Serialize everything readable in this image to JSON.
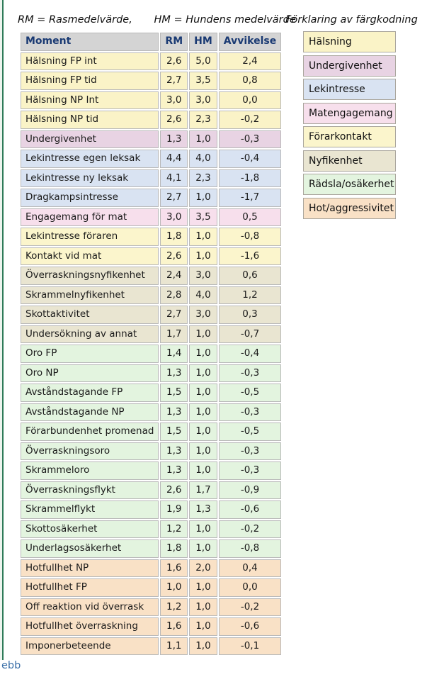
{
  "header": {
    "rm_definition": "RM = Rasmedelvärde,",
    "hm_definition": "HM = Hundens medelvärde"
  },
  "legend": {
    "title": "Förklaring av färgkodning",
    "items": [
      {
        "key": "halsning",
        "label": "Hälsning",
        "color": "#faf3c7"
      },
      {
        "key": "undergivenhet",
        "label": "Undergivenhet",
        "color": "#e8d3e3"
      },
      {
        "key": "lekintresse",
        "label": "Lekintresse",
        "color": "#d9e3f2"
      },
      {
        "key": "matengagemang",
        "label": "Matengagemang",
        "color": "#f7dfec"
      },
      {
        "key": "forarkontakt",
        "label": "Förarkontakt",
        "color": "#fbf5cc"
      },
      {
        "key": "nyfikenhet",
        "label": "Nyfikenhet",
        "color": "#e9e5d1"
      },
      {
        "key": "radsla",
        "label": "Rädsla/osäkerhet",
        "color": "#e3f4df"
      },
      {
        "key": "hot",
        "label": "Hot/aggressivitet",
        "color": "#f9e1c6"
      }
    ]
  },
  "table": {
    "columns": [
      "Moment",
      "RM",
      "HM",
      "Avvikelse"
    ],
    "header_bg": "#d4d4d4",
    "header_text_color": "#1a3a73",
    "rows": [
      {
        "moment": "Hälsning FP int",
        "rm": "2,6",
        "hm": "5,0",
        "avvikelse": "2,4",
        "category": "halsning"
      },
      {
        "moment": "Hälsning FP tid",
        "rm": "2,7",
        "hm": "3,5",
        "avvikelse": "0,8",
        "category": "halsning"
      },
      {
        "moment": "Hälsning NP Int",
        "rm": "3,0",
        "hm": "3,0",
        "avvikelse": "0,0",
        "category": "halsning"
      },
      {
        "moment": "Hälsning NP tid",
        "rm": "2,6",
        "hm": "2,3",
        "avvikelse": "-0,2",
        "category": "halsning"
      },
      {
        "moment": "Undergivenhet",
        "rm": "1,3",
        "hm": "1,0",
        "avvikelse": "-0,3",
        "category": "undergivenhet"
      },
      {
        "moment": "Lekintresse egen leksak",
        "rm": "4,4",
        "hm": "4,0",
        "avvikelse": "-0,4",
        "category": "lekintresse"
      },
      {
        "moment": "Lekintresse ny leksak",
        "rm": "4,1",
        "hm": "2,3",
        "avvikelse": "-1,8",
        "category": "lekintresse"
      },
      {
        "moment": "Dragkampsintresse",
        "rm": "2,7",
        "hm": "1,0",
        "avvikelse": "-1,7",
        "category": "lekintresse"
      },
      {
        "moment": "Engagemang för mat",
        "rm": "3,0",
        "hm": "3,5",
        "avvikelse": "0,5",
        "category": "matengagemang"
      },
      {
        "moment": "Lekintresse föraren",
        "rm": "1,8",
        "hm": "1,0",
        "avvikelse": "-0,8",
        "category": "forarkontakt"
      },
      {
        "moment": "Kontakt vid mat",
        "rm": "2,6",
        "hm": "1,0",
        "avvikelse": "-1,6",
        "category": "forarkontakt"
      },
      {
        "moment": "Överraskningsnyfikenhet",
        "rm": "2,4",
        "hm": "3,0",
        "avvikelse": "0,6",
        "category": "nyfikenhet"
      },
      {
        "moment": "Skrammelnyfikenhet",
        "rm": "2,8",
        "hm": "4,0",
        "avvikelse": "1,2",
        "category": "nyfikenhet"
      },
      {
        "moment": "Skottaktivitet",
        "rm": "2,7",
        "hm": "3,0",
        "avvikelse": "0,3",
        "category": "nyfikenhet"
      },
      {
        "moment": "Undersökning av annat",
        "rm": "1,7",
        "hm": "1,0",
        "avvikelse": "-0,7",
        "category": "nyfikenhet"
      },
      {
        "moment": "Oro FP",
        "rm": "1,4",
        "hm": "1,0",
        "avvikelse": "-0,4",
        "category": "radsla"
      },
      {
        "moment": "Oro NP",
        "rm": "1,3",
        "hm": "1,0",
        "avvikelse": "-0,3",
        "category": "radsla"
      },
      {
        "moment": "Avståndstagande FP",
        "rm": "1,5",
        "hm": "1,0",
        "avvikelse": "-0,5",
        "category": "radsla"
      },
      {
        "moment": "Avståndstagande NP",
        "rm": "1,3",
        "hm": "1,0",
        "avvikelse": "-0,3",
        "category": "radsla"
      },
      {
        "moment": "Förarbundenhet promenad",
        "rm": "1,5",
        "hm": "1,0",
        "avvikelse": "-0,5",
        "category": "radsla"
      },
      {
        "moment": "Överraskningsoro",
        "rm": "1,3",
        "hm": "1,0",
        "avvikelse": "-0,3",
        "category": "radsla"
      },
      {
        "moment": "Skrammeloro",
        "rm": "1,3",
        "hm": "1,0",
        "avvikelse": "-0,3",
        "category": "radsla"
      },
      {
        "moment": "Överraskningsflykt",
        "rm": "2,6",
        "hm": "1,7",
        "avvikelse": "-0,9",
        "category": "radsla"
      },
      {
        "moment": "Skrammelflykt",
        "rm": "1,9",
        "hm": "1,3",
        "avvikelse": "-0,6",
        "category": "radsla"
      },
      {
        "moment": "Skottosäkerhet",
        "rm": "1,2",
        "hm": "1,0",
        "avvikelse": "-0,2",
        "category": "radsla"
      },
      {
        "moment": "Underlagsosäkerhet",
        "rm": "1,8",
        "hm": "1,0",
        "avvikelse": "-0,8",
        "category": "radsla"
      },
      {
        "moment": "Hotfullhet NP",
        "rm": "1,6",
        "hm": "2,0",
        "avvikelse": "0,4",
        "category": "hot"
      },
      {
        "moment": "Hotfullhet FP",
        "rm": "1,0",
        "hm": "1,0",
        "avvikelse": "0,0",
        "category": "hot"
      },
      {
        "moment": "Off reaktion vid överrask",
        "rm": "1,2",
        "hm": "1,0",
        "avvikelse": "-0,2",
        "category": "hot"
      },
      {
        "moment": "Hotfullhet överraskning",
        "rm": "1,6",
        "hm": "1,0",
        "avvikelse": "-0,6",
        "category": "hot"
      },
      {
        "moment": "Imponerbeteende",
        "rm": "1,1",
        "hm": "1,0",
        "avvikelse": "-0,1",
        "category": "hot"
      }
    ]
  },
  "footer": {
    "link_fragment": "ebb"
  },
  "colors": {
    "page_left_border": "#2e7b58",
    "page_left_border_light": "#eef5ef",
    "cell_border": "#b9b9b9",
    "link": "#3a6fa8"
  }
}
